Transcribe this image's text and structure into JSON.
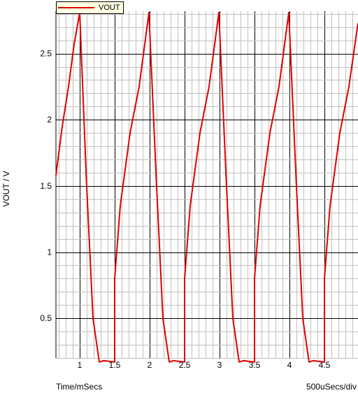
{
  "chart_data": {
    "type": "line",
    "title": "",
    "xlabel": "Time/mSecs",
    "ylabel": "VOUT / V",
    "x_div_label": "500uSecs/div",
    "xlim": [
      0.66,
      4.98
    ],
    "ylim": [
      0.2,
      2.82
    ],
    "x_ticks": [
      1,
      1.5,
      2,
      2.5,
      3,
      3.5,
      4,
      4.5
    ],
    "x_tick_labels": [
      "1",
      "1.5",
      "2",
      "2.5",
      "3",
      "3.5",
      "4",
      "4.5"
    ],
    "y_ticks": [
      0.5,
      1,
      1.5,
      2,
      2.5
    ],
    "y_tick_labels": [
      "0.5",
      "1",
      "1.5",
      "2",
      "2.5"
    ],
    "grid": true,
    "legend": "top-left",
    "series": [
      {
        "name": "VOUT",
        "color": "#e00000",
        "x": [
          0.66,
          0.75,
          0.84,
          0.92,
          1.0,
          1.095,
          1.19,
          1.28,
          1.34,
          1.5,
          1.5,
          1.58,
          1.72,
          1.85,
          1.99,
          2.095,
          2.19,
          2.28,
          2.34,
          2.5,
          2.5,
          2.58,
          2.72,
          2.85,
          2.99,
          3.095,
          3.19,
          3.28,
          3.34,
          3.5,
          3.5,
          3.58,
          3.72,
          3.85,
          3.99,
          4.095,
          4.19,
          4.28,
          4.34,
          4.5,
          4.5,
          4.58,
          4.72,
          4.85,
          4.98
        ],
        "y": [
          1.58,
          1.95,
          2.25,
          2.57,
          2.81,
          1.55,
          0.5,
          0.17,
          0.18,
          0.17,
          0.8,
          1.35,
          1.9,
          2.25,
          2.81,
          1.55,
          0.5,
          0.17,
          0.18,
          0.17,
          0.8,
          1.35,
          1.9,
          2.25,
          2.81,
          1.55,
          0.5,
          0.17,
          0.18,
          0.17,
          0.8,
          1.35,
          1.9,
          2.25,
          2.81,
          1.55,
          0.5,
          0.17,
          0.18,
          0.17,
          0.8,
          1.35,
          1.9,
          2.25,
          2.73
        ]
      }
    ]
  }
}
